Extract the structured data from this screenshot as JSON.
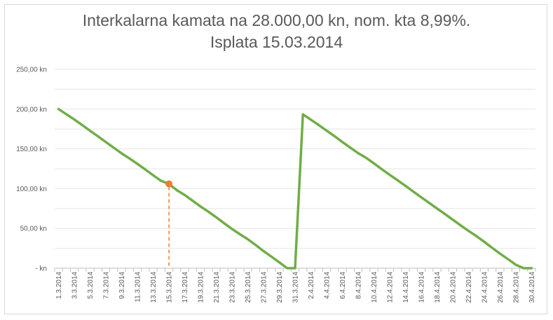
{
  "chart_data": {
    "type": "line",
    "title": "Interkalarna kamata na 28.000,00 kn, nom. kta 8,99%.",
    "subtitle": "Isplata 15.03.2014",
    "ylim": [
      0,
      250
    ],
    "y_ticks": [
      {
        "value": 250,
        "label": "250,00 kn"
      },
      {
        "value": 200,
        "label": "200,00 kn"
      },
      {
        "value": 150,
        "label": "150,00 kn"
      },
      {
        "value": 100,
        "label": "100,00 kn"
      },
      {
        "value": 50,
        "label": "50,00 kn"
      },
      {
        "value": 0,
        "label": "-   kn"
      }
    ],
    "grid": true,
    "categories": [
      "1.3.2014",
      "2.3.2014",
      "3.3.2014",
      "4.3.2014",
      "5.3.2014",
      "6.3.2014",
      "7.3.2014",
      "8.3.2014",
      "9.3.2014",
      "10.3.2014",
      "11.3.2014",
      "12.3.2014",
      "13.3.2014",
      "14.3.2014",
      "15.3.2014",
      "16.3.2014",
      "17.3.2014",
      "18.3.2014",
      "19.3.2014",
      "20.3.2014",
      "21.3.2014",
      "22.3.2014",
      "23.3.2014",
      "24.3.2014",
      "25.3.2014",
      "26.3.2014",
      "27.3.2014",
      "28.3.2014",
      "29.3.2014",
      "30.3.2014",
      "31.3.2014",
      "1.4.2014",
      "2.4.2014",
      "3.4.2014",
      "4.4.2014",
      "5.4.2014",
      "6.4.2014",
      "7.4.2014",
      "8.4.2014",
      "9.4.2014",
      "10.4.2014",
      "11.4.2014",
      "12.4.2014",
      "13.4.2014",
      "14.4.2014",
      "15.4.2014",
      "16.4.2014",
      "17.4.2014",
      "18.4.2014",
      "19.4.2014",
      "20.4.2014",
      "21.4.2014",
      "22.4.2014",
      "23.4.2014",
      "24.4.2014",
      "25.4.2014",
      "26.4.2014",
      "27.4.2014",
      "28.4.2014",
      "29.4.2014",
      "30.4.2014"
    ],
    "series": [
      {
        "color": "#70ad47",
        "values": [
          200,
          193.4,
          186.9,
          179.8,
          172.6,
          165.7,
          158.5,
          151.4,
          144.3,
          137.9,
          131.1,
          124.0,
          116.7,
          109.8,
          106,
          98.1,
          92.0,
          84.8,
          77.6,
          71.0,
          64.0,
          56.5,
          49.3,
          42.7,
          36.4,
          29.1,
          21.5,
          14.5,
          7.3,
          0,
          0,
          193.4,
          186.7,
          179.9,
          172.9,
          166.0,
          158.6,
          151.6,
          144.6,
          138.8,
          131.8,
          124.5,
          117.3,
          110.6,
          103.6,
          96.3,
          89.2,
          82.1,
          75.1,
          68.1,
          61.0,
          53.9,
          46.9,
          40.3,
          33.2,
          25.6,
          18.3,
          11.4,
          4.3,
          0,
          0
        ]
      }
    ],
    "marker": {
      "category": "15.3.2014",
      "value": 106,
      "color": "#ed7d31"
    },
    "label_every": 2
  }
}
